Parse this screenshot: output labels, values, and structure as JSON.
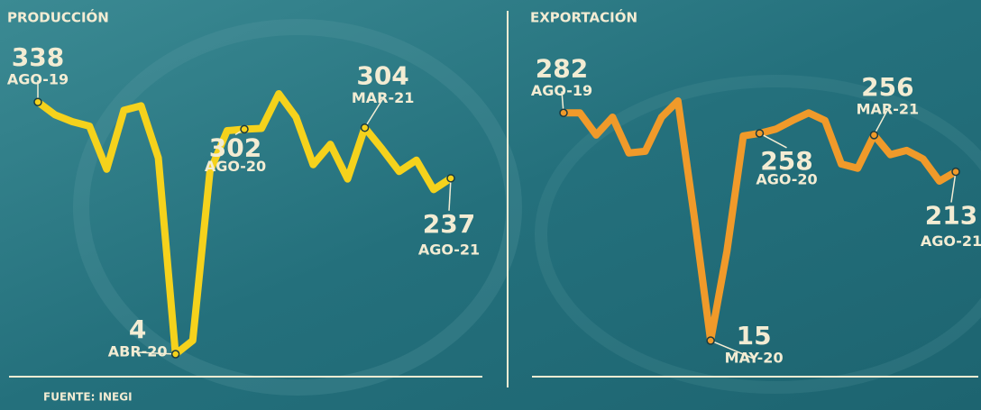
{
  "chart_data": [
    {
      "type": "line",
      "title": "PRODUCCIÓN",
      "color": "#f5d21c",
      "categories": [
        "AGO-19",
        null,
        null,
        null,
        null,
        null,
        null,
        null,
        "ABR-20",
        null,
        null,
        null,
        "AGO-20",
        null,
        null,
        null,
        null,
        null,
        null,
        "MAR-21",
        null,
        null,
        null,
        null,
        "AGO-21"
      ],
      "values": [
        338,
        321,
        312,
        306,
        249,
        327,
        333,
        264,
        4,
        22,
        246,
        300,
        302,
        303,
        349,
        318,
        255,
        282,
        236,
        304,
        276,
        246,
        261,
        222,
        237
      ]
    },
    {
      "type": "line",
      "title": "EXPORTACIÓN",
      "color": "#f09a2a",
      "categories": [
        "AGO-19",
        null,
        null,
        null,
        null,
        null,
        null,
        null,
        null,
        "MAY-20",
        null,
        null,
        "AGO-20",
        null,
        null,
        null,
        null,
        null,
        null,
        "MAR-21",
        null,
        null,
        null,
        null,
        "AGO-21"
      ],
      "values": [
        282,
        282,
        256,
        277,
        235,
        237,
        277,
        296,
        160,
        15,
        120,
        255,
        258,
        263,
        273,
        282,
        273,
        222,
        217,
        256,
        233,
        238,
        228,
        202,
        213
      ]
    }
  ],
  "source": "FUENTE: INEGI"
}
